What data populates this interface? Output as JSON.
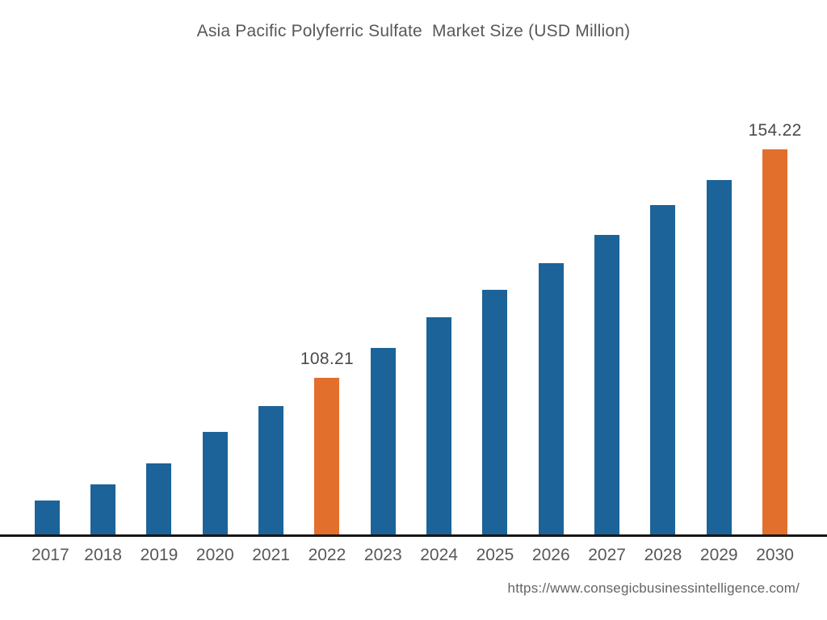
{
  "page": {
    "background": "#ffffff",
    "source_url": "https://www.consegicbusinessintelligence.com/"
  },
  "chart_data": {
    "type": "bar",
    "title": "Asia Pacific Polyferric Sulfate  Market Size (USD Million)",
    "xlabel": "",
    "ylabel": "",
    "grid": false,
    "legend": "none",
    "categories": [
      "2017",
      "2018",
      "2019",
      "2020",
      "2021",
      "2022",
      "2023",
      "2024",
      "2025",
      "2026",
      "2027",
      "2028",
      "2029",
      "2030"
    ],
    "values": [
      83.5,
      86.8,
      91.0,
      97.3,
      102.5,
      108.21,
      114.2,
      120.4,
      125.9,
      131.3,
      137.0,
      143.0,
      148.1,
      154.22
    ],
    "labeled_points": [
      {
        "category": "2022",
        "label": "108.21"
      },
      {
        "category": "2030",
        "label": "154.22"
      }
    ],
    "highlighted_categories": [
      "2022",
      "2030"
    ],
    "bar_color": "#1c6399",
    "highlight_color": "#e26f2c",
    "axis_line_color": "#161616",
    "note": "Only 2022 and 2030 bars carry data labels in the figure; other values estimated from bar heights. Implied baseline (axis minimum) is approximately 76.7."
  }
}
